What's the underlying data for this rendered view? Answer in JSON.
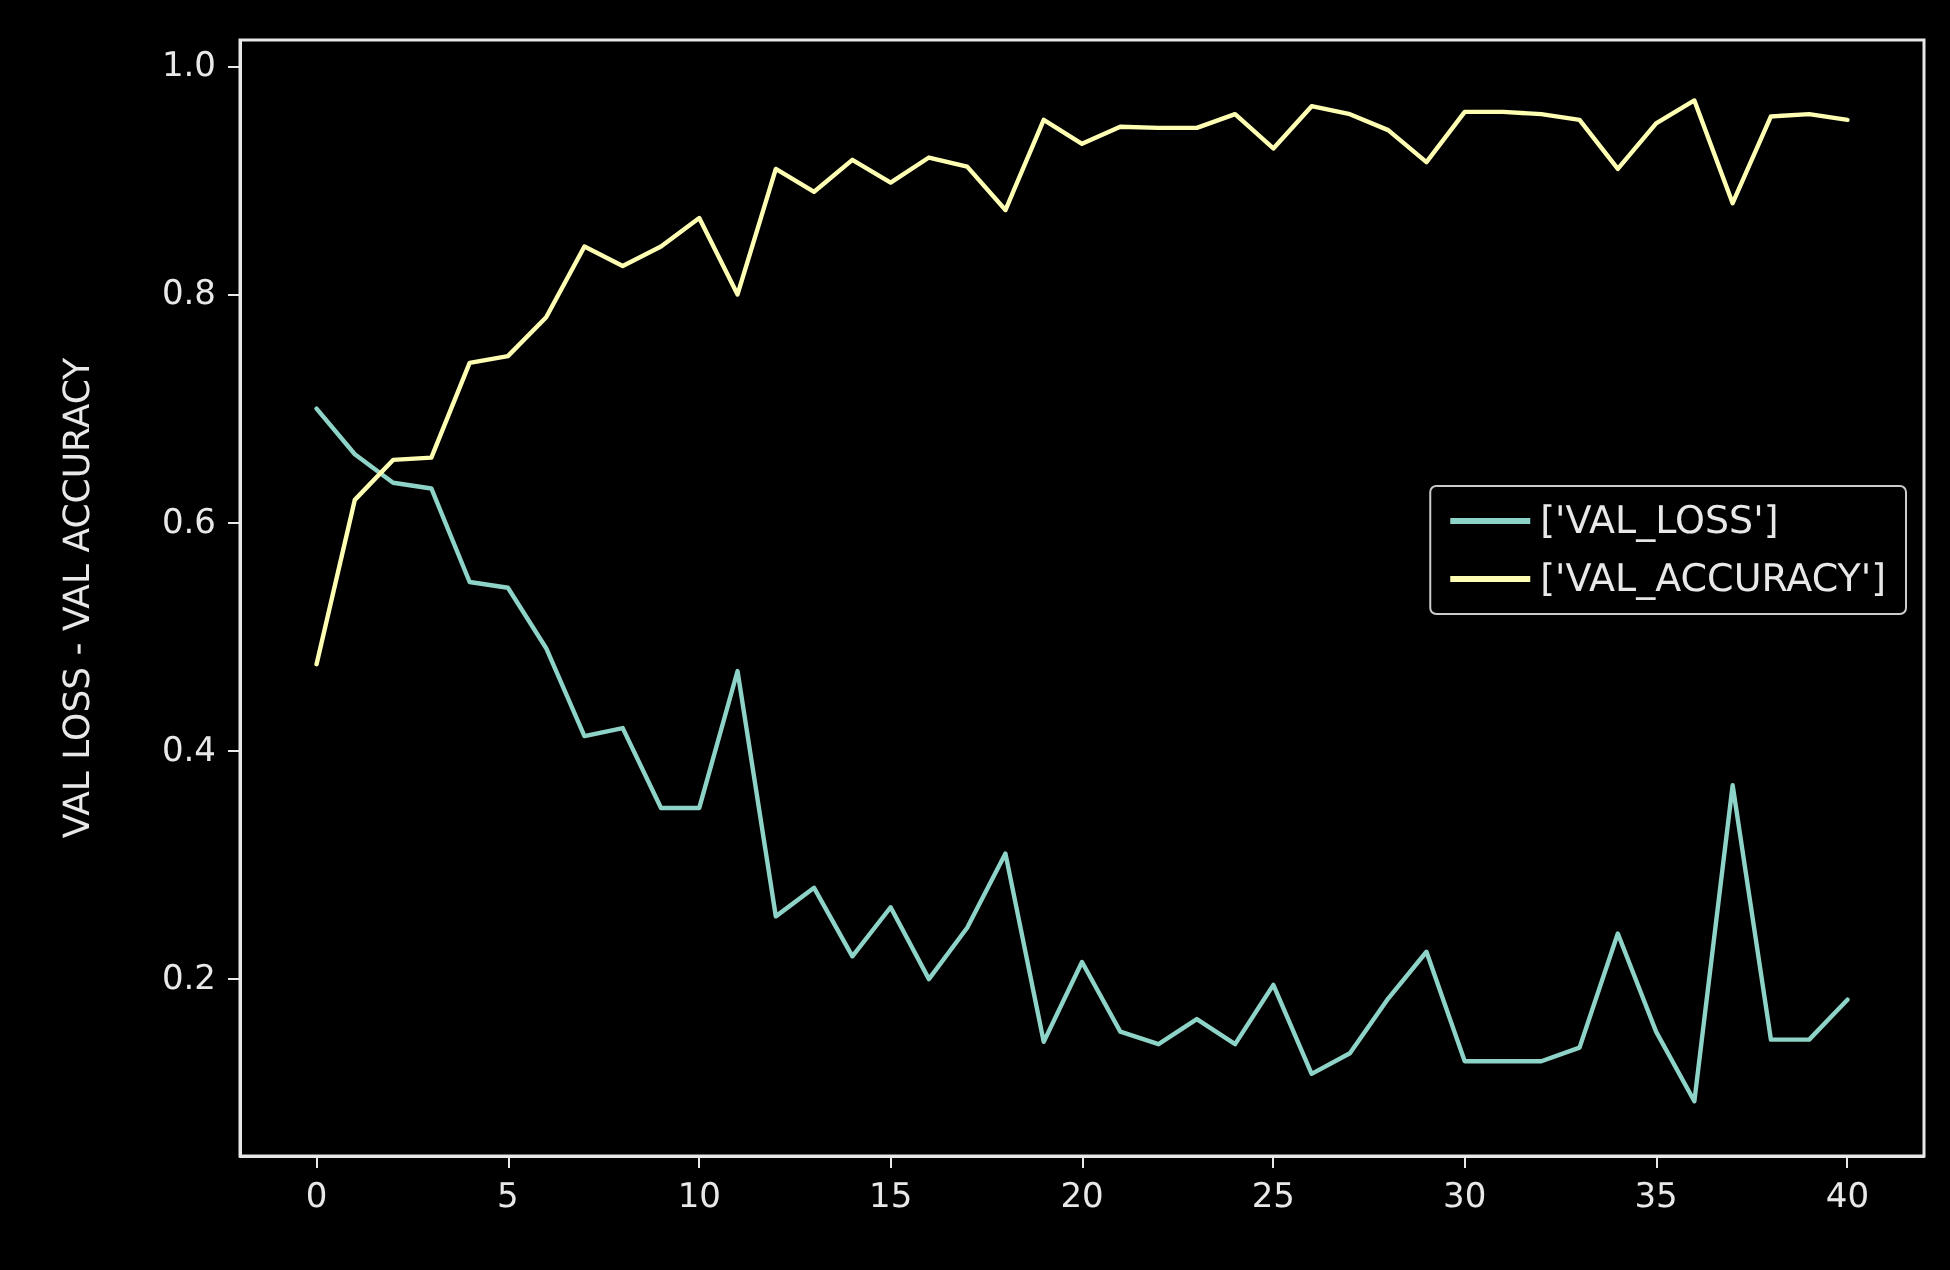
{
  "chart_data": {
    "type": "line",
    "ylabel": "VAL LOSS - VAL ACCURACY",
    "x": [
      0,
      1,
      2,
      3,
      4,
      5,
      6,
      7,
      8,
      9,
      10,
      11,
      12,
      13,
      14,
      15,
      16,
      17,
      18,
      19,
      20,
      21,
      22,
      23,
      24,
      25,
      26,
      27,
      28,
      29,
      30,
      31,
      32,
      33,
      34,
      35,
      36,
      37,
      38,
      39,
      40
    ],
    "series": [
      {
        "name": "['VAL_LOSS']",
        "color": "#8dd3c7",
        "values": [
          0.7,
          0.66,
          0.635,
          0.63,
          0.548,
          0.543,
          0.49,
          0.413,
          0.42,
          0.35,
          0.35,
          0.47,
          0.255,
          0.28,
          0.22,
          0.263,
          0.2,
          0.245,
          0.31,
          0.145,
          0.215,
          0.154,
          0.143,
          0.165,
          0.143,
          0.195,
          0.117,
          0.135,
          0.183,
          0.224,
          0.128,
          0.128,
          0.128,
          0.14,
          0.24,
          0.154,
          0.093,
          0.37,
          0.147,
          0.147,
          0.182
        ]
      },
      {
        "name": "['VAL_ACCURACY']",
        "color": "#feffb3",
        "values": [
          0.476,
          0.62,
          0.655,
          0.657,
          0.74,
          0.746,
          0.78,
          0.842,
          0.825,
          0.842,
          0.867,
          0.8,
          0.91,
          0.89,
          0.918,
          0.898,
          0.92,
          0.912,
          0.874,
          0.953,
          0.932,
          0.947,
          0.946,
          0.946,
          0.958,
          0.928,
          0.965,
          0.958,
          0.944,
          0.916,
          0.96,
          0.96,
          0.958,
          0.953,
          0.91,
          0.95,
          0.97,
          0.88,
          0.956,
          0.958,
          0.953
        ]
      }
    ],
    "xlim": [
      -2,
      42
    ],
    "xticks": [
      0,
      5,
      10,
      15,
      20,
      25,
      30,
      35,
      40
    ],
    "ylim": [
      0.045,
      1.023
    ],
    "yticks": [
      0.2,
      0.4,
      0.6,
      0.8,
      {
        "value": 1,
        "label": "1.0"
      }
    ],
    "legend": "right",
    "grid": false,
    "marker": "none",
    "line_style": "solid"
  }
}
